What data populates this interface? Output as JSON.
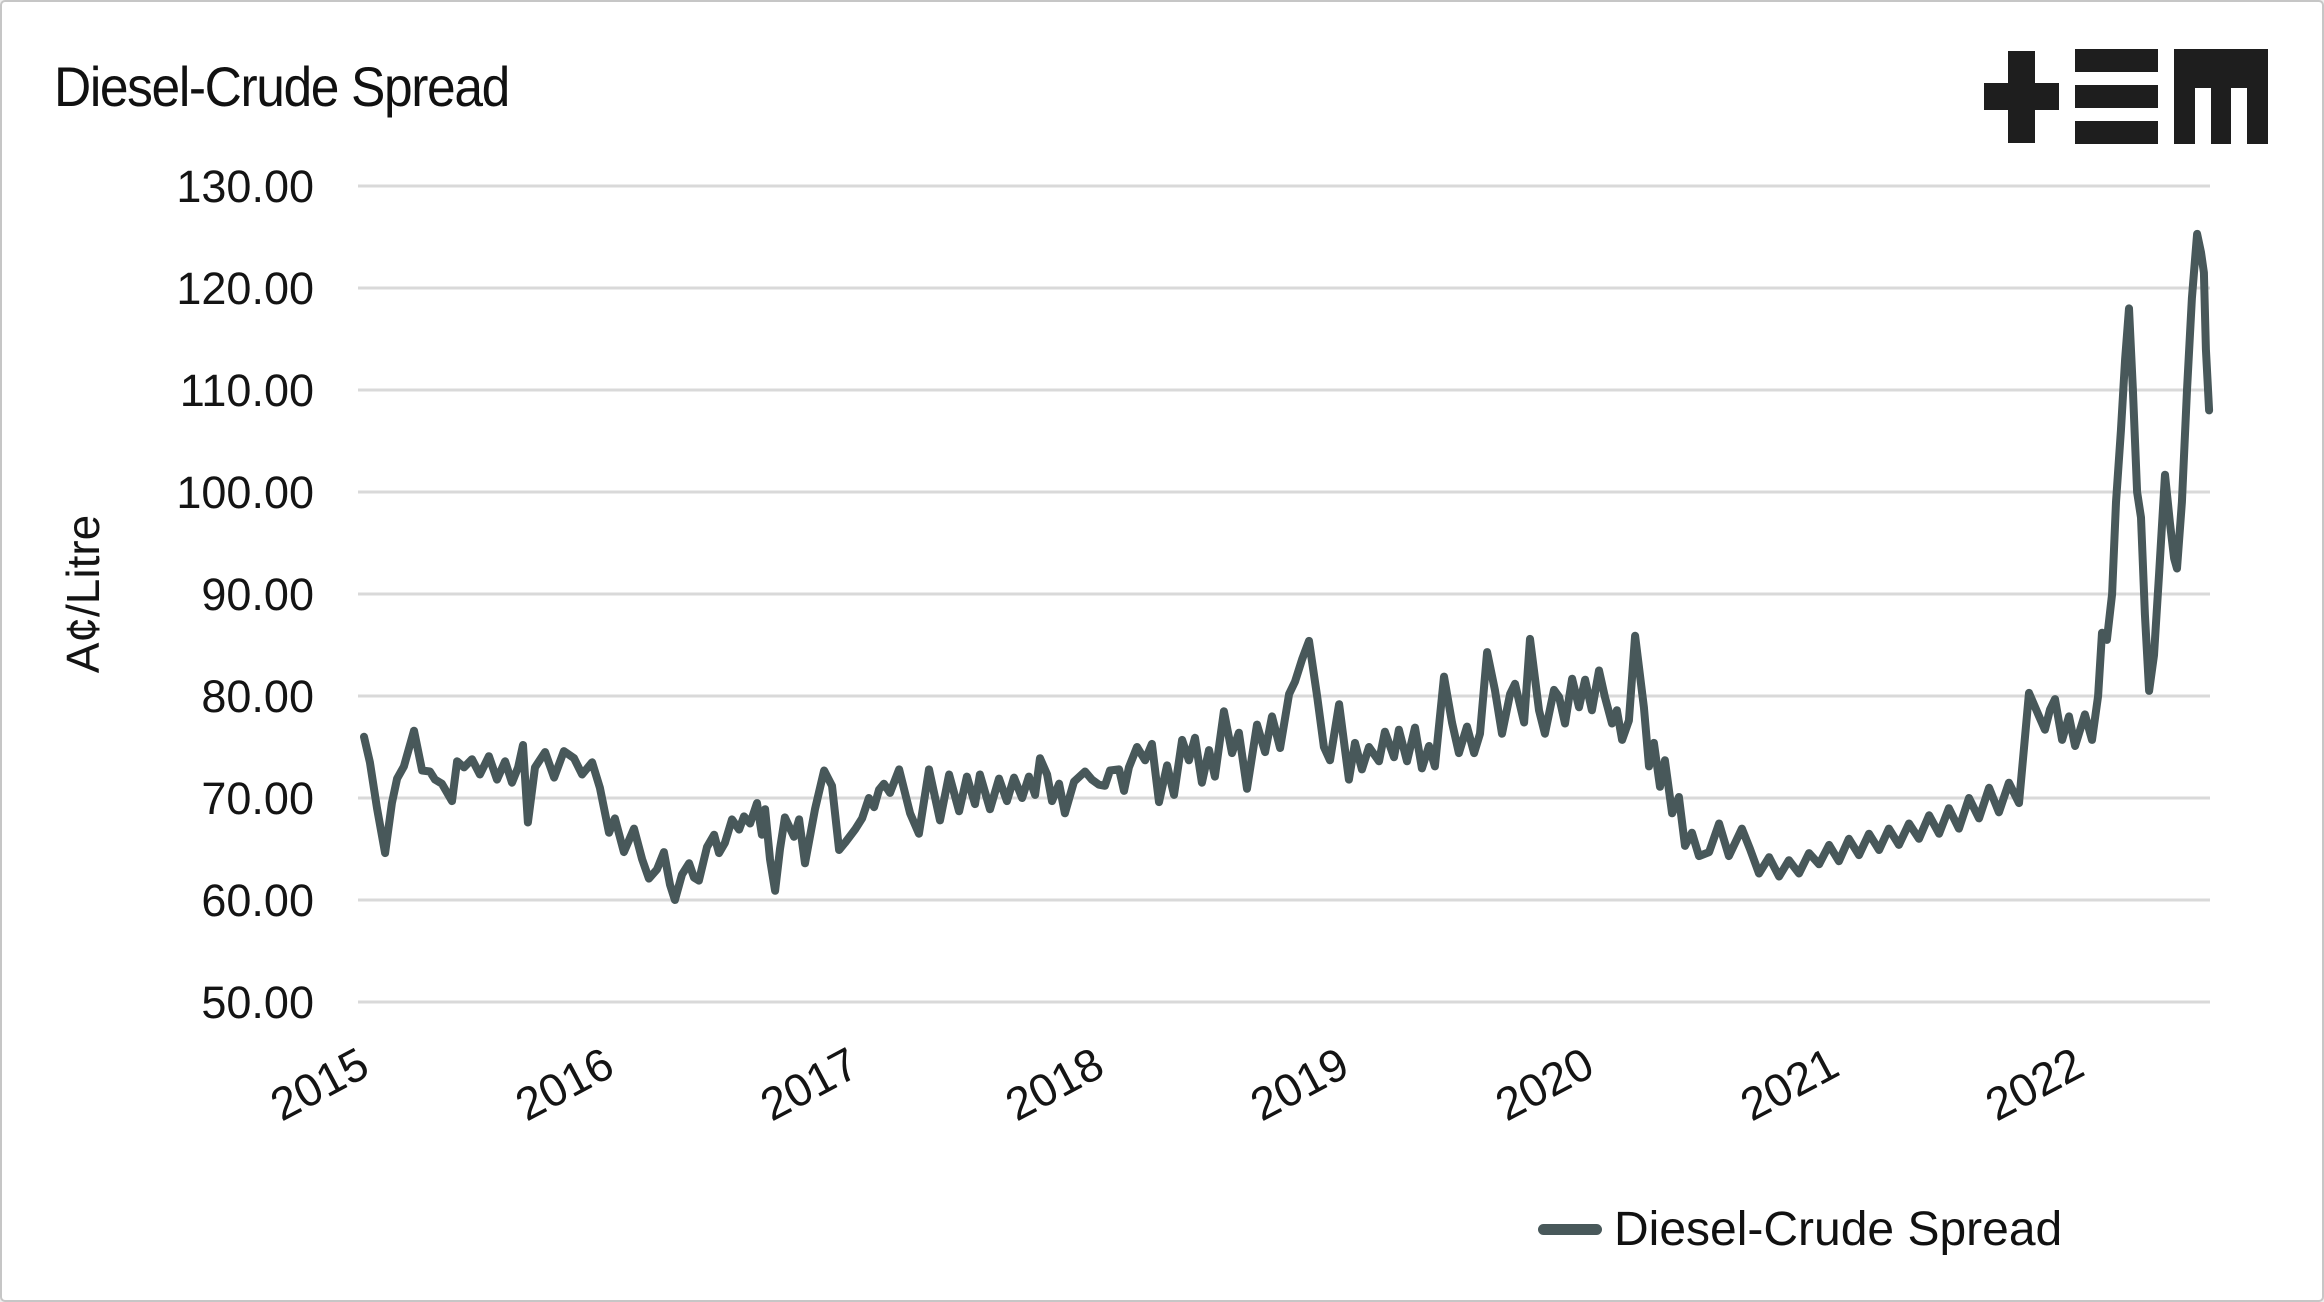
{
  "title": "Diesel-Crude Spread",
  "logo": {
    "name": "tem-logo",
    "glyphs": "+≡M"
  },
  "y_axis": {
    "label": "A¢/Litre",
    "ticks": [
      "130.00",
      "120.00",
      "110.00",
      "100.00",
      "90.00",
      "80.00",
      "70.00",
      "60.00",
      "50.00"
    ],
    "tick_values": [
      130,
      120,
      110,
      100,
      90,
      80,
      70,
      60,
      50
    ]
  },
  "x_axis": {
    "ticks": [
      "2015",
      "2016",
      "2017",
      "2018",
      "2019",
      "2020",
      "2021",
      "2022"
    ],
    "tick_values": [
      2015,
      2016,
      2017,
      2018,
      2019,
      2020,
      2021,
      2022
    ]
  },
  "legend": {
    "label": "Diesel-Crude Spread"
  },
  "chart_data": {
    "type": "line",
    "title": "Diesel-Crude Spread",
    "xlabel": "",
    "ylabel": "A¢/Litre",
    "ylim": [
      50,
      130
    ],
    "xlim": [
      2015.0,
      2022.55
    ],
    "grid": true,
    "legend_position": "bottom-right",
    "line_color": "#48585A",
    "grid_color": "#d9d9d9",
    "text_color": "#141414",
    "series": [
      {
        "name": "Diesel-Crude Spread",
        "points": [
          [
            2015.0,
            76.0
          ],
          [
            2015.024,
            73.5
          ],
          [
            2015.053,
            69.0
          ],
          [
            2015.086,
            64.6
          ],
          [
            2015.114,
            69.5
          ],
          [
            2015.135,
            71.9
          ],
          [
            2015.163,
            73.1
          ],
          [
            2015.204,
            76.6
          ],
          [
            2015.237,
            72.7
          ],
          [
            2015.269,
            72.6
          ],
          [
            2015.29,
            71.8
          ],
          [
            2015.318,
            71.4
          ],
          [
            2015.359,
            69.7
          ],
          [
            2015.38,
            73.6
          ],
          [
            2015.408,
            73.0
          ],
          [
            2015.441,
            73.8
          ],
          [
            2015.473,
            72.3
          ],
          [
            2015.51,
            74.1
          ],
          [
            2015.543,
            71.8
          ],
          [
            2015.576,
            73.6
          ],
          [
            2015.604,
            71.5
          ],
          [
            2015.629,
            73.0
          ],
          [
            2015.649,
            75.2
          ],
          [
            2015.669,
            67.6
          ],
          [
            2015.698,
            73.0
          ],
          [
            2015.739,
            74.5
          ],
          [
            2015.776,
            72.0
          ],
          [
            2015.816,
            74.6
          ],
          [
            2015.857,
            73.9
          ],
          [
            2015.89,
            72.3
          ],
          [
            2015.931,
            73.5
          ],
          [
            2015.963,
            71.0
          ],
          [
            2016.0,
            66.6
          ],
          [
            2016.024,
            68.0
          ],
          [
            2016.061,
            64.7
          ],
          [
            2016.102,
            67.0
          ],
          [
            2016.135,
            64.0
          ],
          [
            2016.163,
            62.1
          ],
          [
            2016.196,
            63.0
          ],
          [
            2016.224,
            64.7
          ],
          [
            2016.249,
            61.5
          ],
          [
            2016.269,
            60.0
          ],
          [
            2016.298,
            62.5
          ],
          [
            2016.327,
            63.6
          ],
          [
            2016.347,
            62.2
          ],
          [
            2016.367,
            61.9
          ],
          [
            2016.4,
            65.2
          ],
          [
            2016.429,
            66.4
          ],
          [
            2016.449,
            64.6
          ],
          [
            2016.473,
            65.6
          ],
          [
            2016.502,
            67.9
          ],
          [
            2016.531,
            66.9
          ],
          [
            2016.551,
            68.2
          ],
          [
            2016.576,
            67.5
          ],
          [
            2016.604,
            69.5
          ],
          [
            2016.624,
            66.4
          ],
          [
            2016.637,
            68.9
          ],
          [
            2016.657,
            64.0
          ],
          [
            2016.678,
            60.9
          ],
          [
            2016.698,
            65.0
          ],
          [
            2016.718,
            68.1
          ],
          [
            2016.755,
            66.2
          ],
          [
            2016.776,
            67.9
          ],
          [
            2016.8,
            63.6
          ],
          [
            2016.841,
            68.9
          ],
          [
            2016.878,
            72.7
          ],
          [
            2016.91,
            71.2
          ],
          [
            2016.939,
            64.9
          ],
          [
            2016.963,
            65.6
          ],
          [
            2017.004,
            66.9
          ],
          [
            2017.033,
            68.0
          ],
          [
            2017.061,
            70.0
          ],
          [
            2017.082,
            69.1
          ],
          [
            2017.102,
            70.8
          ],
          [
            2017.122,
            71.4
          ],
          [
            2017.147,
            70.5
          ],
          [
            2017.184,
            72.8
          ],
          [
            2017.229,
            68.5
          ],
          [
            2017.265,
            66.5
          ],
          [
            2017.306,
            72.8
          ],
          [
            2017.351,
            67.8
          ],
          [
            2017.388,
            72.3
          ],
          [
            2017.429,
            68.7
          ],
          [
            2017.461,
            72.1
          ],
          [
            2017.494,
            69.4
          ],
          [
            2017.514,
            72.3
          ],
          [
            2017.555,
            68.9
          ],
          [
            2017.592,
            71.9
          ],
          [
            2017.624,
            69.7
          ],
          [
            2017.653,
            72.0
          ],
          [
            2017.686,
            70.0
          ],
          [
            2017.714,
            72.1
          ],
          [
            2017.739,
            70.3
          ],
          [
            2017.759,
            73.9
          ],
          [
            2017.788,
            72.3
          ],
          [
            2017.808,
            69.7
          ],
          [
            2017.837,
            71.4
          ],
          [
            2017.861,
            68.5
          ],
          [
            2017.898,
            71.6
          ],
          [
            2017.943,
            72.6
          ],
          [
            2017.971,
            71.8
          ],
          [
            2018.0,
            71.3
          ],
          [
            2018.024,
            71.2
          ],
          [
            2018.045,
            72.7
          ],
          [
            2018.082,
            72.8
          ],
          [
            2018.102,
            70.7
          ],
          [
            2018.122,
            73.0
          ],
          [
            2018.155,
            75.0
          ],
          [
            2018.188,
            73.7
          ],
          [
            2018.216,
            75.3
          ],
          [
            2018.245,
            69.6
          ],
          [
            2018.278,
            73.2
          ],
          [
            2018.306,
            70.3
          ],
          [
            2018.339,
            75.7
          ],
          [
            2018.367,
            73.7
          ],
          [
            2018.392,
            75.9
          ],
          [
            2018.42,
            71.5
          ],
          [
            2018.449,
            74.7
          ],
          [
            2018.473,
            72.1
          ],
          [
            2018.51,
            78.5
          ],
          [
            2018.543,
            74.4
          ],
          [
            2018.571,
            76.4
          ],
          [
            2018.604,
            70.9
          ],
          [
            2018.645,
            77.2
          ],
          [
            2018.678,
            74.5
          ],
          [
            2018.706,
            78.0
          ],
          [
            2018.739,
            74.9
          ],
          [
            2018.776,
            80.2
          ],
          [
            2018.8,
            81.4
          ],
          [
            2018.829,
            83.6
          ],
          [
            2018.857,
            85.4
          ],
          [
            2018.89,
            80.0
          ],
          [
            2018.918,
            75.0
          ],
          [
            2018.943,
            73.7
          ],
          [
            2018.98,
            79.2
          ],
          [
            2019.02,
            71.8
          ],
          [
            2019.045,
            75.4
          ],
          [
            2019.073,
            72.8
          ],
          [
            2019.102,
            75.0
          ],
          [
            2019.143,
            73.6
          ],
          [
            2019.167,
            76.5
          ],
          [
            2019.204,
            74.0
          ],
          [
            2019.224,
            76.7
          ],
          [
            2019.257,
            73.6
          ],
          [
            2019.29,
            76.9
          ],
          [
            2019.318,
            72.9
          ],
          [
            2019.347,
            75.1
          ],
          [
            2019.371,
            73.1
          ],
          [
            2019.408,
            81.9
          ],
          [
            2019.441,
            77.4
          ],
          [
            2019.469,
            74.4
          ],
          [
            2019.502,
            77.0
          ],
          [
            2019.531,
            74.4
          ],
          [
            2019.555,
            76.3
          ],
          [
            2019.584,
            84.3
          ],
          [
            2019.616,
            80.6
          ],
          [
            2019.645,
            76.3
          ],
          [
            2019.678,
            80.2
          ],
          [
            2019.698,
            81.2
          ],
          [
            2019.735,
            77.4
          ],
          [
            2019.759,
            85.6
          ],
          [
            2019.796,
            78.6
          ],
          [
            2019.82,
            76.3
          ],
          [
            2019.857,
            80.6
          ],
          [
            2019.878,
            79.9
          ],
          [
            2019.902,
            77.3
          ],
          [
            2019.931,
            81.7
          ],
          [
            2019.959,
            78.9
          ],
          [
            2019.984,
            81.6
          ],
          [
            2020.012,
            78.6
          ],
          [
            2020.041,
            82.5
          ],
          [
            2020.065,
            79.9
          ],
          [
            2020.094,
            77.3
          ],
          [
            2020.114,
            78.6
          ],
          [
            2020.135,
            75.7
          ],
          [
            2020.163,
            77.6
          ],
          [
            2020.188,
            85.9
          ],
          [
            2020.224,
            78.9
          ],
          [
            2020.245,
            73.1
          ],
          [
            2020.265,
            75.4
          ],
          [
            2020.29,
            71.1
          ],
          [
            2020.31,
            73.7
          ],
          [
            2020.339,
            68.5
          ],
          [
            2020.367,
            70.1
          ],
          [
            2020.392,
            65.3
          ],
          [
            2020.42,
            66.6
          ],
          [
            2020.449,
            64.3
          ],
          [
            2020.49,
            64.7
          ],
          [
            2020.531,
            67.5
          ],
          [
            2020.571,
            64.3
          ],
          [
            2020.624,
            67.0
          ],
          [
            2020.657,
            65.0
          ],
          [
            2020.694,
            62.6
          ],
          [
            2020.735,
            64.2
          ],
          [
            2020.776,
            62.3
          ],
          [
            2020.816,
            63.9
          ],
          [
            2020.857,
            62.6
          ],
          [
            2020.898,
            64.6
          ],
          [
            2020.939,
            63.5
          ],
          [
            2020.98,
            65.4
          ],
          [
            2021.02,
            63.8
          ],
          [
            2021.061,
            66.0
          ],
          [
            2021.102,
            64.4
          ],
          [
            2021.143,
            66.5
          ],
          [
            2021.184,
            64.9
          ],
          [
            2021.224,
            67.0
          ],
          [
            2021.265,
            65.4
          ],
          [
            2021.306,
            67.5
          ],
          [
            2021.347,
            66.0
          ],
          [
            2021.388,
            68.3
          ],
          [
            2021.429,
            66.5
          ],
          [
            2021.469,
            69.0
          ],
          [
            2021.51,
            67.0
          ],
          [
            2021.551,
            70.0
          ],
          [
            2021.592,
            68.0
          ],
          [
            2021.633,
            71.0
          ],
          [
            2021.673,
            68.6
          ],
          [
            2021.714,
            71.5
          ],
          [
            2021.755,
            69.5
          ],
          [
            2021.796,
            80.3
          ],
          [
            2021.837,
            78.0
          ],
          [
            2021.861,
            76.7
          ],
          [
            2021.882,
            78.7
          ],
          [
            2021.902,
            79.7
          ],
          [
            2021.931,
            75.7
          ],
          [
            2021.959,
            78.0
          ],
          [
            2021.984,
            75.1
          ],
          [
            2022.024,
            78.2
          ],
          [
            2022.053,
            75.7
          ],
          [
            2022.078,
            80.0
          ],
          [
            2022.094,
            86.2
          ],
          [
            2022.114,
            85.5
          ],
          [
            2022.135,
            90.0
          ],
          [
            2022.151,
            99.0
          ],
          [
            2022.171,
            106.0
          ],
          [
            2022.188,
            113.0
          ],
          [
            2022.204,
            118.0
          ],
          [
            2022.22,
            110.0
          ],
          [
            2022.237,
            100.0
          ],
          [
            2022.253,
            97.5
          ],
          [
            2022.269,
            88.0
          ],
          [
            2022.286,
            80.5
          ],
          [
            2022.306,
            84.0
          ],
          [
            2022.327,
            92.0
          ],
          [
            2022.351,
            101.7
          ],
          [
            2022.371,
            97.0
          ],
          [
            2022.388,
            93.5
          ],
          [
            2022.4,
            92.5
          ],
          [
            2022.42,
            99.0
          ],
          [
            2022.441,
            110.0
          ],
          [
            2022.461,
            119.0
          ],
          [
            2022.482,
            125.3
          ],
          [
            2022.498,
            123.5
          ],
          [
            2022.51,
            121.5
          ],
          [
            2022.518,
            114.0
          ],
          [
            2022.531,
            108.0
          ]
        ]
      }
    ]
  }
}
